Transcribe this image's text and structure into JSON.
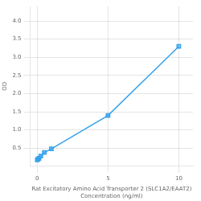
{
  "chart_data": {
    "type": "line",
    "x": [
      0,
      0.0625,
      0.125,
      0.25,
      0.5,
      1,
      5,
      10
    ],
    "values": [
      0.175,
      0.195,
      0.22,
      0.28,
      0.38,
      0.48,
      1.4,
      3.3
    ],
    "marker": "square",
    "xlabel": "Rat Excitatory Amino Acid Transporter 2 (SLC1A2/EAAT2)\nConcentration (ng/ml)",
    "ylabel": "OD",
    "xlim": [
      -0.5,
      11
    ],
    "ylim": [
      0,
      4.4
    ],
    "xticks": [
      0,
      5,
      10
    ],
    "yticks": [
      0.5,
      {
        "value": 1,
        "label": "1.0"
      },
      1.5,
      {
        "value": 2,
        "label": "2.0"
      },
      2.5,
      {
        "value": 3,
        "label": "3.0"
      },
      3.5,
      {
        "value": 4,
        "label": "4.0"
      }
    ],
    "grid": true
  }
}
